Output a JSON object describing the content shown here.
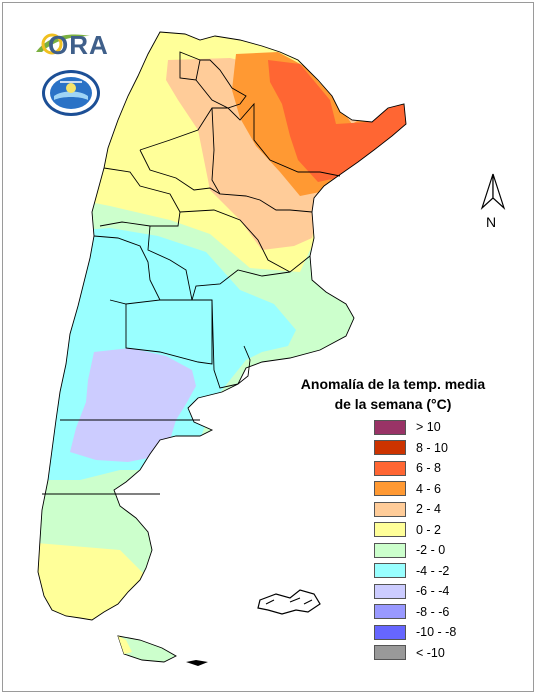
{
  "title_line1": "Anomalía de la temp. media",
  "title_line2": "de la semana (°C)",
  "logo_ora": "ORA",
  "north_label": "N",
  "legend": [
    {
      "label": "> 10",
      "color": "#993366"
    },
    {
      "label": "8 - 10",
      "color": "#cc3300"
    },
    {
      "label": "6 - 8",
      "color": "#ff6633"
    },
    {
      "label": "4 - 6",
      "color": "#ff9933"
    },
    {
      "label": "2 - 4",
      "color": "#ffcc99"
    },
    {
      "label": "0 - 2",
      "color": "#ffff99"
    },
    {
      "label": "-2 - 0",
      "color": "#ccffcc"
    },
    {
      "label": "-4 - -2",
      "color": "#99ffff"
    },
    {
      "label": "-6 - -4",
      "color": "#ccccff"
    },
    {
      "label": "-8 - -6",
      "color": "#9999ff"
    },
    {
      "label": "-10 - -8",
      "color": "#6666ff"
    },
    {
      "label": "< -10",
      "color": "#999999"
    }
  ]
}
